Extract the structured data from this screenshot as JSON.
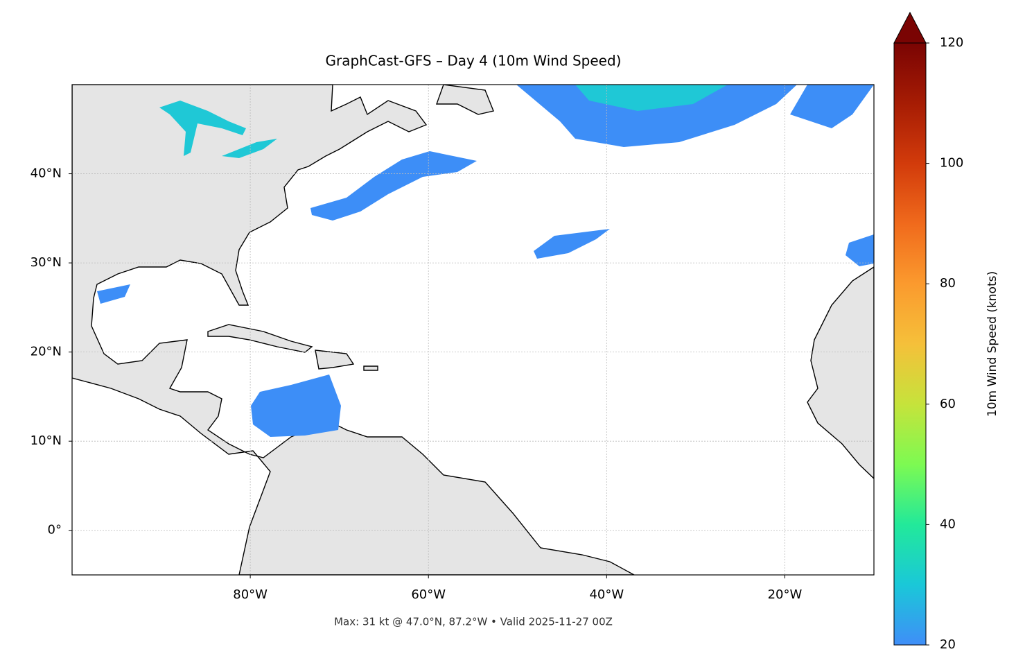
{
  "title": "GraphCast-GFS – Day 4 (10m Wind Speed)",
  "map": {
    "lon_lim": [
      -100,
      -10
    ],
    "lat_lim": [
      -5,
      50
    ],
    "lon_ticks": [
      {
        "value": -80,
        "label": "80°W"
      },
      {
        "value": -60,
        "label": "60°W"
      },
      {
        "value": -40,
        "label": "40°W"
      },
      {
        "value": -20,
        "label": "20°W"
      }
    ],
    "lat_ticks": [
      {
        "value": 0,
        "label": "0°"
      },
      {
        "value": 10,
        "label": "10°N"
      },
      {
        "value": 20,
        "label": "20°N"
      },
      {
        "value": 30,
        "label": "30°N"
      },
      {
        "value": 40,
        "label": "40°N"
      }
    ],
    "grid": true
  },
  "colorbar": {
    "label": "10m Wind Speed (knots)",
    "lim": [
      20,
      120
    ],
    "ticks": [
      20,
      40,
      60,
      80,
      100,
      120
    ],
    "extend": "max"
  },
  "footer": "Max: 31 kt @ 47.0°N, 87.2°W • Valid 2025-11-27 00Z"
}
